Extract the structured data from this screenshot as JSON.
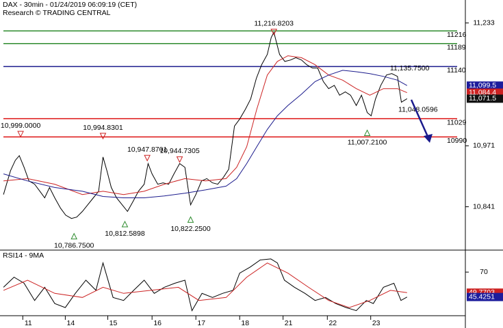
{
  "chart_data": [
    {
      "type": "line",
      "title": "DAX - 30min - 01/24/2019 06:09:19 (CET)",
      "subtitle": "Research © TRADING CENTRAL",
      "xlim": [
        -0.52,
        10.1
      ],
      "ylim": [
        10750,
        11282
      ],
      "yticks": [
        {
          "value": 11233,
          "label": "11,233"
        },
        {
          "value": 10971,
          "label": "10,971"
        },
        {
          "value": 10841,
          "label": "10,841"
        }
      ],
      "series": [
        {
          "color": "#000000",
          "x": [
            -0.44,
            -0.28,
            -0.17,
            -0.08,
            0.03,
            0.14,
            0.27,
            0.39,
            0.5,
            0.61,
            0.73,
            0.86,
            0.98,
            1.11,
            1.23,
            1.36,
            1.48,
            1.61,
            1.73,
            1.83,
            1.92,
            2.02,
            2.14,
            2.27,
            2.39,
            2.52,
            2.64,
            2.77,
            2.86,
            2.95,
            3.08,
            3.2,
            3.33,
            3.45,
            3.58,
            3.7,
            3.83,
            3.95,
            4.08,
            4.2,
            4.33,
            4.45,
            4.58,
            4.7,
            4.83,
            4.95,
            5.08,
            5.2,
            5.33,
            5.45,
            5.58,
            5.67,
            5.73,
            5.86,
            5.98,
            6.11,
            6.23,
            6.36,
            6.48,
            6.61,
            6.73,
            6.86,
            6.98,
            7.11,
            7.23,
            7.36,
            7.48,
            7.61,
            7.73,
            7.86,
            7.95,
            8.05,
            8.17,
            8.3,
            8.42,
            8.55,
            8.64,
            8.77
          ],
          "values": [
            10867,
            10918,
            10940,
            10950,
            10925,
            10896,
            10889,
            10874,
            10860,
            10882,
            10860,
            10838,
            10823,
            10816,
            10819,
            10831,
            10845,
            10860,
            10874,
            10947,
            10918,
            10882,
            10860,
            10845,
            10831,
            10853,
            10874,
            10889,
            10933,
            10911,
            10889,
            10892,
            10889,
            10911,
            10933,
            10925,
            10845,
            10867,
            10896,
            10901,
            10892,
            10889,
            10904,
            10921,
            11013,
            11028,
            11049,
            11071,
            11115,
            11144,
            11166,
            11202,
            11213,
            11166,
            11151,
            11154,
            11159,
            11154,
            11144,
            11137,
            11137,
            11108,
            11093,
            11100,
            11079,
            11086,
            11079,
            11057,
            11079,
            11042,
            11035,
            11071,
            11100,
            11122,
            11125,
            11119,
            11064,
            11071.5
          ]
        },
        {
          "color": "#cc2222",
          "x": [
            -0.44,
            0.11,
            0.73,
            1.36,
            1.83,
            2.3,
            2.77,
            3.23,
            3.7,
            4.17,
            4.64,
            4.88,
            5.11,
            5.34,
            5.58,
            5.81,
            6.05,
            6.36,
            6.67,
            6.98,
            7.3,
            7.61,
            7.92,
            8.23,
            8.55,
            8.77
          ],
          "values": [
            10896,
            10901,
            10889,
            10867,
            10874,
            10867,
            10874,
            10889,
            10901,
            10896,
            10901,
            10925,
            10969,
            11049,
            11122,
            11151,
            11163,
            11159,
            11144,
            11122,
            11111,
            11093,
            11079,
            11093,
            11093,
            11084.4
          ]
        },
        {
          "color": "#1a1a8c",
          "x": [
            -0.44,
            0.11,
            0.73,
            1.36,
            1.83,
            2.3,
            2.77,
            3.23,
            3.7,
            4.17,
            4.64,
            4.88,
            5.11,
            5.34,
            5.58,
            5.81,
            6.05,
            6.36,
            6.67,
            6.98,
            7.3,
            7.61,
            7.92,
            8.23,
            8.55,
            8.77
          ],
          "values": [
            10911,
            10896,
            10882,
            10874,
            10863,
            10860,
            10860,
            10864,
            10870,
            10877,
            10885,
            10901,
            10933,
            10969,
            11006,
            11035,
            11057,
            11081,
            11108,
            11122,
            11132,
            11129,
            11125,
            11119,
            11111,
            11099.5
          ]
        }
      ],
      "levels": [
        {
          "value": 11216,
          "color": "#2e8b2e"
        },
        {
          "value": 11189,
          "color": "#2e8b2e"
        },
        {
          "value": 11140,
          "color": "#1a1a8c"
        },
        {
          "value": 11029,
          "color": "#dd1111"
        },
        {
          "value": 10990,
          "color": "#dd1111"
        }
      ],
      "annotations": [
        {
          "x": 5.73,
          "value": 11216.8203,
          "label": "11,216.8203",
          "marker": "down"
        },
        {
          "x": -0.05,
          "value": 10999.0,
          "label": "10,999.0000",
          "marker": "down"
        },
        {
          "x": 1.83,
          "value": 10994.8301,
          "label": "10,994.8301",
          "marker": "down"
        },
        {
          "x": 2.84,
          "value": 10947.8701,
          "label": "10,947.8701",
          "marker": "down"
        },
        {
          "x": 3.58,
          "value": 10944.7305,
          "label": "10,944.7305",
          "marker": "down"
        },
        {
          "x": 1.17,
          "value": 10786.75,
          "label": "10,786.7500",
          "marker": "up"
        },
        {
          "x": 2.33,
          "value": 10812.5898,
          "label": "10,812.5898",
          "marker": "up"
        },
        {
          "x": 3.83,
          "value": 10822.25,
          "label": "10,822.2500",
          "marker": "up"
        },
        {
          "x": 7.86,
          "value": 11007.21,
          "label": "11,007.2100",
          "marker": "up"
        },
        {
          "x": 9.02,
          "value": 11048.0596,
          "label": "11,048.0596",
          "marker": "none"
        },
        {
          "x": 8.83,
          "value": 11135.75,
          "label": "11,135.7500",
          "marker": "none"
        }
      ],
      "badges": [
        {
          "value": 11099.5,
          "label": "11,099.5",
          "color": "#1c1c9c"
        },
        {
          "value": 11084.4,
          "label": "11,084.4",
          "color": "#cc2222"
        },
        {
          "value": 11071.5,
          "label": "11,071.5",
          "color": "#111111"
        }
      ]
    },
    {
      "type": "line",
      "title": "RSI14 - 9MA",
      "xlim": [
        -0.52,
        10.1
      ],
      "ylim": [
        27,
        91
      ],
      "yticks": [
        70
      ],
      "xticks": [
        {
          "value": 0,
          "label": "11"
        },
        {
          "value": 0.97,
          "label": "14"
        },
        {
          "value": 1.94,
          "label": "15"
        },
        {
          "value": 2.95,
          "label": "16"
        },
        {
          "value": 3.95,
          "label": "17"
        },
        {
          "value": 4.95,
          "label": "18"
        },
        {
          "value": 5.94,
          "label": "21"
        },
        {
          "value": 6.95,
          "label": "22"
        },
        {
          "value": 7.94,
          "label": "23"
        }
      ],
      "series": [
        {
          "color": "#000000",
          "x": [
            -0.44,
            -0.2,
            0.03,
            0.27,
            0.5,
            0.73,
            0.97,
            1.2,
            1.44,
            1.67,
            1.83,
            2.06,
            2.3,
            2.53,
            2.77,
            3,
            3.23,
            3.47,
            3.7,
            3.86,
            4.09,
            4.33,
            4.56,
            4.8,
            4.95,
            5.19,
            5.42,
            5.66,
            5.81,
            5.97,
            6.2,
            6.44,
            6.67,
            6.91,
            7.14,
            7.38,
            7.61,
            7.84,
            8,
            8.23,
            8.47,
            8.63,
            8.77
          ],
          "values": [
            55,
            65,
            59,
            42,
            55,
            39,
            35,
            49,
            62,
            52,
            79,
            45,
            42,
            52,
            62,
            49,
            55,
            59,
            62,
            32,
            49,
            45,
            49,
            52,
            69,
            75,
            82,
            83,
            79,
            62,
            55,
            49,
            42,
            45,
            39,
            35,
            32,
            42,
            39,
            55,
            59,
            42,
            45.4251
          ]
        },
        {
          "color": "#cc2222",
          "x": [
            -0.44,
            0.11,
            0.73,
            1.36,
            1.83,
            2.3,
            2.92,
            3.55,
            4.02,
            4.64,
            5.11,
            5.58,
            6.05,
            6.52,
            6.98,
            7.45,
            7.92,
            8.39,
            8.77
          ],
          "values": [
            52,
            62,
            49,
            45,
            55,
            49,
            52,
            55,
            42,
            45,
            65,
            79,
            69,
            55,
            42,
            35,
            42,
            52,
            49.7703
          ]
        }
      ],
      "badges": [
        {
          "value": 49.7703,
          "label": "49.7703",
          "color": "#cc2222"
        },
        {
          "value": 45.4251,
          "label": "45.4251",
          "color": "#1c1c9c"
        }
      ]
    }
  ]
}
